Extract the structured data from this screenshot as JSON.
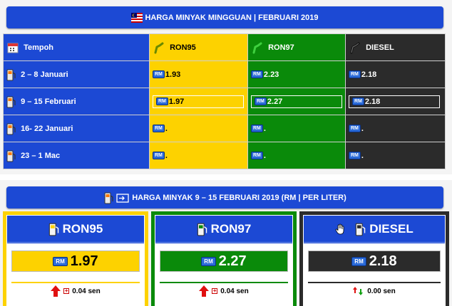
{
  "top": {
    "title": "HARGA MINYAK MINGGUAN | FEBRUARI 2019",
    "headers": {
      "period": "Tempoh",
      "ron95": "RON95",
      "ron97": "RON97",
      "diesel": "DIESEL"
    },
    "rm_label": "RM",
    "rows": [
      {
        "period": "2 – 8 Januari",
        "ron95": "1.93",
        "ron97": "2.23",
        "diesel": "2.18"
      },
      {
        "period": "9 – 15 Februari",
        "ron95": "1.97",
        "ron97": "2.27",
        "diesel": "2.18"
      },
      {
        "period": "16- 22 Januari",
        "ron95": ".",
        "ron97": ".",
        "diesel": "."
      },
      {
        "period": "23 – 1 Mac",
        "ron95": ".",
        "ron97": ".",
        "diesel": "."
      }
    ]
  },
  "bottom": {
    "title": "HARGA MINYAK 9 – 15 FEBRUARI 2019 (RM | PER LITER)",
    "cards": [
      {
        "name": "RON95",
        "price": "1.97",
        "change": "0.04 sen",
        "trend": "up"
      },
      {
        "name": "RON97",
        "price": "2.27",
        "change": "0.04 sen",
        "trend": "up"
      },
      {
        "name": "DIESEL",
        "price": "2.18",
        "change": "0.00 sen",
        "trend": "flat"
      }
    ]
  },
  "colors": {
    "blue": "#1c49d4",
    "ron95": "#fdd200",
    "ron97": "#0a8a0a",
    "diesel": "#2b2b2b",
    "up": "#e01010"
  }
}
